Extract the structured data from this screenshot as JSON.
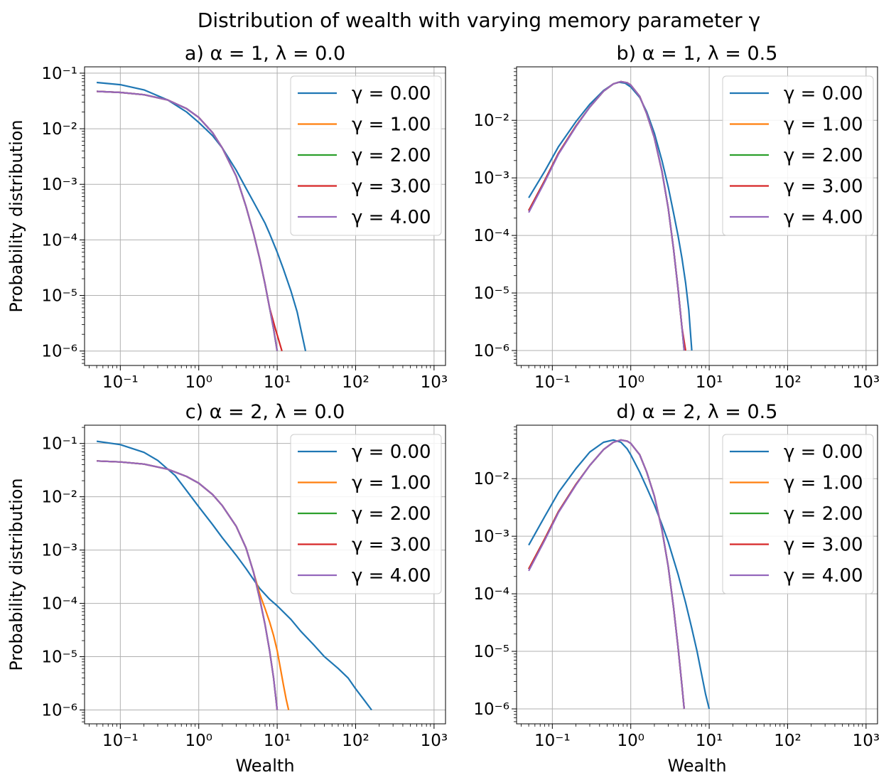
{
  "figure": {
    "title": "Distribution of wealth with varying memory parameter γ"
  },
  "chart_data": [
    {
      "type": "line",
      "panel_title": "a) α = 1, λ = 0.0",
      "xlabel": "",
      "ylabel": "Probability distribution",
      "xscale": "log",
      "yscale": "log",
      "xlim": [
        0.035,
        1400
      ],
      "ylim": [
        5.5e-07,
        0.13
      ],
      "xticks": [
        "10⁻¹",
        "10⁰",
        "10¹",
        "10²",
        "10³"
      ],
      "yticks": [
        "10⁻¹",
        "10⁻²",
        "10⁻³",
        "10⁻⁴",
        "10⁻⁵",
        "10⁻⁶"
      ],
      "grid": true,
      "legend_position": "upper right",
      "series": [
        {
          "name": "γ = 0.00",
          "color": "#1f77b4",
          "x": [
            0.05,
            0.1,
            0.2,
            0.4,
            0.7,
            1.0,
            1.5,
            2.0,
            3.0,
            4.0,
            5.0,
            6.0,
            7.0,
            8.0,
            10.0,
            12.0,
            15.0,
            18.0,
            20.0,
            23.0
          ],
          "y": [
            0.068,
            0.062,
            0.05,
            0.033,
            0.02,
            0.013,
            0.0075,
            0.0045,
            0.0018,
            0.00085,
            0.00048,
            0.0003,
            0.0002,
            0.00013,
            6e-05,
            3e-05,
            1.2e-05,
            5e-06,
            2.5e-06,
            1e-06
          ]
        },
        {
          "name": "γ = 1.00",
          "color": "#ff7f0e",
          "x": [
            0.05,
            0.1,
            0.2,
            0.4,
            0.7,
            1.0,
            1.5,
            2.0,
            3.0,
            4.0,
            5.0,
            6.0,
            7.0,
            8.0,
            9.0,
            10.0
          ],
          "y": [
            0.047,
            0.045,
            0.041,
            0.033,
            0.023,
            0.016,
            0.0085,
            0.0045,
            0.0014,
            0.0004,
            0.00013,
            4.5e-05,
            1.6e-05,
            6e-06,
            2.5e-06,
            1e-06
          ]
        },
        {
          "name": "γ = 2.00",
          "color": "#2ca02c",
          "x": [
            0.05,
            0.1,
            0.2,
            0.4,
            0.7,
            1.0,
            1.5,
            2.0,
            3.0,
            4.0,
            5.0,
            6.0,
            7.0,
            8.0,
            9.0,
            10.0
          ],
          "y": [
            0.047,
            0.045,
            0.041,
            0.033,
            0.023,
            0.016,
            0.0085,
            0.0045,
            0.0014,
            0.0004,
            0.00013,
            4.5e-05,
            1.6e-05,
            6e-06,
            2.5e-06,
            1e-06
          ]
        },
        {
          "name": "γ = 3.00",
          "color": "#d62728",
          "x": [
            0.05,
            0.1,
            0.2,
            0.4,
            0.7,
            1.0,
            1.5,
            2.0,
            3.0,
            4.0,
            5.0,
            6.0,
            7.0,
            8.0,
            9.5,
            11.5
          ],
          "y": [
            0.047,
            0.045,
            0.041,
            0.033,
            0.023,
            0.016,
            0.0085,
            0.0045,
            0.0014,
            0.0004,
            0.00013,
            4.5e-05,
            1.6e-05,
            6e-06,
            2.5e-06,
            1e-06
          ]
        },
        {
          "name": "γ = 4.00",
          "color": "#9467bd",
          "x": [
            0.05,
            0.1,
            0.2,
            0.4,
            0.7,
            1.0,
            1.5,
            2.0,
            3.0,
            4.0,
            5.0,
            6.0,
            7.0,
            8.0,
            9.0,
            10.0
          ],
          "y": [
            0.047,
            0.045,
            0.041,
            0.033,
            0.023,
            0.016,
            0.0085,
            0.0045,
            0.0014,
            0.0004,
            0.00013,
            4.5e-05,
            1.6e-05,
            6e-06,
            2.5e-06,
            1e-06
          ]
        }
      ]
    },
    {
      "type": "line",
      "panel_title": "b) α = 1, λ = 0.5",
      "xlabel": "",
      "ylabel": "",
      "xscale": "log",
      "yscale": "log",
      "xlim": [
        0.035,
        1400
      ],
      "ylim": [
        5.5e-07,
        0.085
      ],
      "xticks": [
        "10⁻¹",
        "10⁰",
        "10¹",
        "10²",
        "10³"
      ],
      "yticks": [
        "10⁻²",
        "10⁻³",
        "10⁻⁴",
        "10⁻⁵",
        "10⁻⁶"
      ],
      "grid": true,
      "legend_position": "upper right",
      "series": [
        {
          "name": "γ = 0.00",
          "color": "#1f77b4",
          "x": [
            0.05,
            0.08,
            0.12,
            0.2,
            0.3,
            0.45,
            0.6,
            0.7,
            0.85,
            1.0,
            1.3,
            1.6,
            2.0,
            2.5,
            3.0,
            3.5,
            4.0,
            4.5,
            5.0,
            5.5,
            6.0
          ],
          "y": [
            0.00045,
            0.0013,
            0.0035,
            0.0095,
            0.019,
            0.033,
            0.043,
            0.046,
            0.044,
            0.038,
            0.025,
            0.014,
            0.006,
            0.002,
            0.0007,
            0.00025,
            0.0001,
            4e-05,
            1.5e-05,
            5e-06,
            1e-06
          ]
        },
        {
          "name": "γ = 1.00",
          "color": "#ff7f0e",
          "x": [
            0.05,
            0.08,
            0.12,
            0.2,
            0.3,
            0.45,
            0.6,
            0.75,
            0.9,
            1.0,
            1.3,
            1.6,
            2.0,
            2.5,
            3.0,
            3.5,
            4.0,
            4.5,
            4.8
          ],
          "y": [
            0.00027,
            0.0009,
            0.0027,
            0.008,
            0.017,
            0.032,
            0.043,
            0.047,
            0.045,
            0.041,
            0.026,
            0.013,
            0.005,
            0.0013,
            0.0003,
            6e-05,
            1.2e-05,
            2.5e-06,
            1e-06
          ]
        },
        {
          "name": "γ = 2.00",
          "color": "#2ca02c",
          "x": [
            0.05,
            0.08,
            0.12,
            0.2,
            0.3,
            0.45,
            0.6,
            0.75,
            0.9,
            1.0,
            1.3,
            1.6,
            2.0,
            2.5,
            3.0,
            3.5,
            4.0,
            4.5,
            4.8
          ],
          "y": [
            0.00027,
            0.0009,
            0.0027,
            0.008,
            0.017,
            0.032,
            0.043,
            0.047,
            0.045,
            0.041,
            0.026,
            0.013,
            0.005,
            0.0013,
            0.0003,
            6e-05,
            1.2e-05,
            2.5e-06,
            1e-06
          ]
        },
        {
          "name": "γ = 3.00",
          "color": "#d62728",
          "x": [
            0.05,
            0.08,
            0.12,
            0.2,
            0.3,
            0.45,
            0.6,
            0.75,
            0.9,
            1.0,
            1.3,
            1.6,
            2.0,
            2.5,
            3.0,
            3.5,
            4.0,
            4.5,
            5.0
          ],
          "y": [
            0.00027,
            0.0009,
            0.0027,
            0.008,
            0.017,
            0.032,
            0.043,
            0.047,
            0.045,
            0.041,
            0.026,
            0.013,
            0.005,
            0.0013,
            0.0003,
            6e-05,
            1.2e-05,
            2.5e-06,
            1e-06
          ]
        },
        {
          "name": "γ = 4.00",
          "color": "#9467bd",
          "x": [
            0.05,
            0.08,
            0.12,
            0.2,
            0.3,
            0.45,
            0.6,
            0.75,
            0.9,
            1.0,
            1.3,
            1.6,
            2.0,
            2.5,
            3.0,
            3.5,
            4.0,
            4.5,
            4.8
          ],
          "y": [
            0.00025,
            0.00085,
            0.0026,
            0.0078,
            0.017,
            0.032,
            0.043,
            0.047,
            0.045,
            0.041,
            0.026,
            0.013,
            0.005,
            0.0013,
            0.0003,
            6e-05,
            1.2e-05,
            2.5e-06,
            1e-06
          ]
        }
      ]
    },
    {
      "type": "line",
      "panel_title": "c) α = 2, λ = 0.0",
      "xlabel": "Wealth",
      "ylabel": "Probability distribution",
      "xscale": "log",
      "yscale": "log",
      "xlim": [
        0.035,
        1400
      ],
      "ylim": [
        5.5e-07,
        0.22
      ],
      "xticks": [
        "10⁻¹",
        "10⁰",
        "10¹",
        "10²",
        "10³"
      ],
      "yticks": [
        "10⁻¹",
        "10⁻²",
        "10⁻³",
        "10⁻⁴",
        "10⁻⁵",
        "10⁻⁶"
      ],
      "grid": true,
      "legend_position": "upper right",
      "series": [
        {
          "name": "γ = 0.00",
          "color": "#1f77b4",
          "x": [
            0.05,
            0.1,
            0.2,
            0.3,
            0.5,
            0.7,
            1.0,
            1.5,
            2.0,
            3.0,
            4.0,
            5.0,
            6.0,
            8.0,
            10.0,
            15.0,
            20.0,
            30.0,
            40.0,
            60.0,
            80.0,
            100.0,
            130.0,
            160.0
          ],
          "y": [
            0.11,
            0.095,
            0.068,
            0.048,
            0.025,
            0.013,
            0.0065,
            0.003,
            0.0017,
            0.0008,
            0.00045,
            0.00028,
            0.00019,
            0.00012,
            9e-05,
            5e-05,
            3e-05,
            1.6e-05,
            1e-05,
            6e-06,
            4e-06,
            2.5e-06,
            1.5e-06,
            1e-06
          ]
        },
        {
          "name": "γ = 1.00",
          "color": "#ff7f0e",
          "x": [
            0.05,
            0.1,
            0.2,
            0.4,
            0.7,
            1.0,
            1.5,
            2.0,
            3.0,
            4.0,
            5.0,
            6.0,
            7.0,
            8.0,
            9.0,
            10.0,
            11.0,
            12.0,
            13.0,
            14.0
          ],
          "y": [
            0.047,
            0.045,
            0.041,
            0.033,
            0.024,
            0.018,
            0.011,
            0.0068,
            0.0028,
            0.0011,
            0.00038,
            0.00015,
            8e-05,
            4.5e-05,
            2.5e-05,
            1.3e-05,
            6e-06,
            3e-06,
            1.6e-06,
            1e-06
          ]
        },
        {
          "name": "γ = 2.00",
          "color": "#2ca02c",
          "x": [
            0.05,
            0.1,
            0.2,
            0.4,
            0.7,
            1.0,
            1.5,
            2.0,
            3.0,
            4.0,
            5.0,
            6.0,
            7.0,
            8.0,
            9.0,
            10.0
          ],
          "y": [
            0.047,
            0.045,
            0.041,
            0.033,
            0.024,
            0.018,
            0.011,
            0.0068,
            0.0028,
            0.0011,
            0.00038,
            0.00012,
            4e-05,
            1.3e-05,
            4e-06,
            1e-06
          ]
        },
        {
          "name": "γ = 3.00",
          "color": "#d62728",
          "x": [
            0.05,
            0.1,
            0.2,
            0.4,
            0.7,
            1.0,
            1.5,
            2.0,
            3.0,
            4.0,
            5.0,
            6.0,
            7.0,
            8.0,
            9.0,
            10.0
          ],
          "y": [
            0.047,
            0.045,
            0.041,
            0.033,
            0.024,
            0.018,
            0.011,
            0.0068,
            0.0028,
            0.0011,
            0.00038,
            0.00012,
            4e-05,
            1.3e-05,
            4e-06,
            1e-06
          ]
        },
        {
          "name": "γ = 4.00",
          "color": "#9467bd",
          "x": [
            0.05,
            0.1,
            0.2,
            0.4,
            0.7,
            1.0,
            1.5,
            2.0,
            3.0,
            4.0,
            5.0,
            6.0,
            7.0,
            8.0,
            9.0,
            10.0
          ],
          "y": [
            0.047,
            0.045,
            0.041,
            0.033,
            0.024,
            0.018,
            0.011,
            0.0068,
            0.0028,
            0.0011,
            0.00038,
            0.00012,
            4e-05,
            1.3e-05,
            4e-06,
            1e-06
          ]
        }
      ]
    },
    {
      "type": "line",
      "panel_title": "d) α = 2, λ = 0.5",
      "xlabel": "Wealth",
      "ylabel": "",
      "xscale": "log",
      "yscale": "log",
      "xlim": [
        0.035,
        1400
      ],
      "ylim": [
        5.5e-07,
        0.085
      ],
      "xticks": [
        "10⁻¹",
        "10⁰",
        "10¹",
        "10²",
        "10³"
      ],
      "yticks": [
        "10⁻²",
        "10⁻³",
        "10⁻⁴",
        "10⁻⁵",
        "10⁻⁶"
      ],
      "grid": true,
      "legend_position": "upper right",
      "series": [
        {
          "name": "γ = 0.00",
          "color": "#1f77b4",
          "x": [
            0.05,
            0.08,
            0.12,
            0.2,
            0.3,
            0.45,
            0.6,
            0.75,
            0.9,
            1.0,
            1.3,
            1.6,
            2.0,
            2.5,
            3.0,
            4.0,
            5.0,
            6.0,
            7.0,
            8.0,
            9.0,
            10.0
          ],
          "y": [
            0.0007,
            0.0022,
            0.0058,
            0.015,
            0.029,
            0.043,
            0.047,
            0.043,
            0.033,
            0.026,
            0.013,
            0.007,
            0.0035,
            0.0016,
            0.0008,
            0.00022,
            7e-05,
            2.5e-05,
            1e-05,
            4e-06,
            1.8e-06,
            1e-06
          ]
        },
        {
          "name": "γ = 1.00",
          "color": "#ff7f0e",
          "x": [
            0.05,
            0.08,
            0.12,
            0.2,
            0.3,
            0.45,
            0.6,
            0.75,
            0.9,
            1.0,
            1.3,
            1.6,
            2.0,
            2.5,
            3.0,
            3.5,
            4.0,
            4.5,
            4.8
          ],
          "y": [
            0.00027,
            0.0009,
            0.0027,
            0.008,
            0.017,
            0.032,
            0.043,
            0.047,
            0.045,
            0.041,
            0.026,
            0.013,
            0.005,
            0.0013,
            0.0003,
            6e-05,
            1.2e-05,
            2.5e-06,
            1e-06
          ]
        },
        {
          "name": "γ = 2.00",
          "color": "#2ca02c",
          "x": [
            0.05,
            0.08,
            0.12,
            0.2,
            0.3,
            0.45,
            0.6,
            0.75,
            0.9,
            1.0,
            1.3,
            1.6,
            2.0,
            2.5,
            3.0,
            3.5,
            4.0,
            4.5,
            4.8
          ],
          "y": [
            0.00027,
            0.0009,
            0.0027,
            0.008,
            0.017,
            0.032,
            0.043,
            0.047,
            0.045,
            0.041,
            0.026,
            0.013,
            0.005,
            0.0013,
            0.0003,
            6e-05,
            1.2e-05,
            2.5e-06,
            1e-06
          ]
        },
        {
          "name": "γ = 3.00",
          "color": "#d62728",
          "x": [
            0.05,
            0.08,
            0.12,
            0.2,
            0.3,
            0.45,
            0.6,
            0.75,
            0.9,
            1.0,
            1.3,
            1.6,
            2.0,
            2.5,
            3.0,
            3.5,
            4.0,
            4.5,
            4.8
          ],
          "y": [
            0.00027,
            0.0009,
            0.0027,
            0.008,
            0.017,
            0.032,
            0.043,
            0.047,
            0.045,
            0.041,
            0.026,
            0.013,
            0.005,
            0.0013,
            0.0003,
            6e-05,
            1.2e-05,
            2.5e-06,
            1e-06
          ]
        },
        {
          "name": "γ = 4.00",
          "color": "#9467bd",
          "x": [
            0.05,
            0.08,
            0.12,
            0.2,
            0.3,
            0.45,
            0.6,
            0.75,
            0.9,
            1.0,
            1.3,
            1.6,
            2.0,
            2.5,
            3.0,
            3.5,
            4.0,
            4.5,
            4.8
          ],
          "y": [
            0.00025,
            0.00085,
            0.0026,
            0.0078,
            0.017,
            0.032,
            0.043,
            0.047,
            0.045,
            0.041,
            0.026,
            0.013,
            0.005,
            0.0013,
            0.0003,
            6e-05,
            1.2e-05,
            2.5e-06,
            1e-06
          ]
        }
      ]
    }
  ]
}
